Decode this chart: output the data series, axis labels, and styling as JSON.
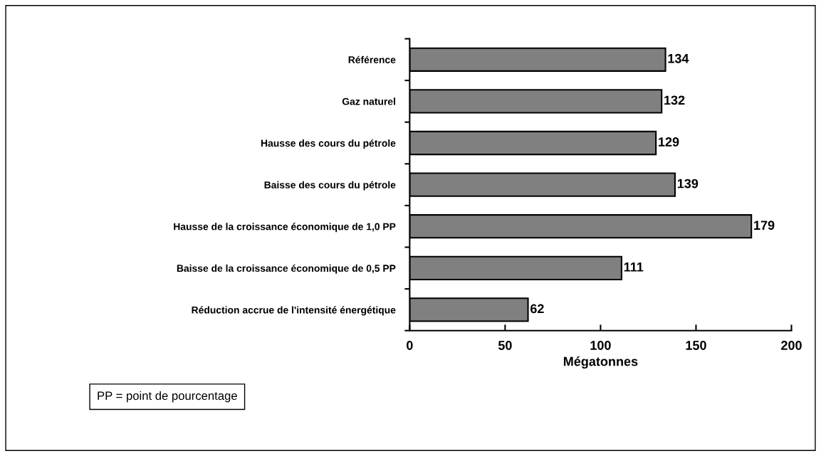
{
  "chart_data": {
    "type": "bar",
    "orientation": "horizontal",
    "categories": [
      "Référence",
      "Gaz naturel",
      "Hausse des cours du pétrole",
      "Baisse des cours du pétrole",
      "Hausse de la croissance économique de 1,0 PP",
      "Baisse de la croissance économique de 0,5 PP",
      "Réduction accrue de l'intensité énergétique"
    ],
    "values": [
      134,
      132,
      129,
      139,
      179,
      111,
      62
    ],
    "color": "#808080",
    "xlim": [
      0,
      200
    ],
    "xticks": [
      0,
      50,
      100,
      150,
      200
    ],
    "xlabel": "Mégatonnes",
    "data_labels": true,
    "grid": false,
    "annotations": [
      "PP = point de pourcentage"
    ]
  }
}
